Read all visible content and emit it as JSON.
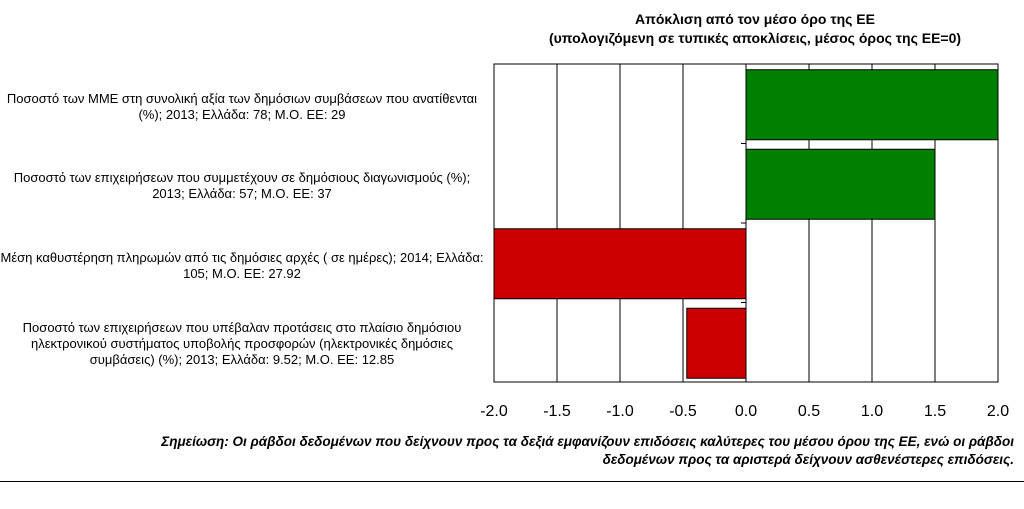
{
  "chart_data": {
    "type": "bar",
    "orientation": "horizontal",
    "title": "Απόκλιση από τον μέσο όρο της ΕΕ",
    "subtitle": "(υπολογιζόμενη σε τυπικές αποκλίσεις, μέσος όρος της ΕΕ=0)",
    "categories": [
      "Ποσοστό των ΜΜΕ στη συνολική αξία των δημόσιων συμβάσεων που ανατίθενται (%); 2013; Ελλάδα: 78; Μ.Ο. ΕΕ: 29",
      "Ποσοστό των επιχειρήσεων που συμμετέχουν σε δημόσιους διαγωνισμούς (%); 2013; Ελλάδα: 57; Μ.Ο. ΕΕ: 37",
      "Μέση καθυστέρηση πληρωμών από τις δημόσιες αρχές ( σε ημέρες); 2014; Ελλάδα: 105; Μ.Ο. ΕΕ: 27.92",
      "Ποσοστό των επιχειρήσεων που υπέβαλαν προτάσεις στο πλαίσιο δημόσιου ηλεκτρονικού συστήματος υποβολής προσφορών (ηλεκτρονικές δημόσιες συμβάσεις) (%); 2013; Ελλάδα: 9.52; Μ.Ο. ΕΕ: 12.85"
    ],
    "values": [
      2.0,
      1.5,
      -2.0,
      -0.47
    ],
    "bar_colors": [
      "#008000",
      "#008000",
      "#cc0000",
      "#cc0000"
    ],
    "xlim": [
      -2.0,
      2.0
    ],
    "xticks": [
      "-2.0",
      "-1.5",
      "-1.0",
      "-0.5",
      "0.0",
      "0.5",
      "1.0",
      "1.5",
      "2.0"
    ],
    "grid": "vertical",
    "legend": "none"
  },
  "note": "Σημείωση: Οι ράβδοι δεδομένων που δείχνουν προς τα δεξιά εμφανίζουν επιδόσεις καλύτερες του μέσου όρου της ΕΕ, ενώ οι ράβδοι δεδομένων προς τα αριστερά δείχνουν ασθενέστερες επιδόσεις.",
  "colors": {
    "positive": "#008000",
    "negative": "#cc0000",
    "grid": "#000000"
  }
}
